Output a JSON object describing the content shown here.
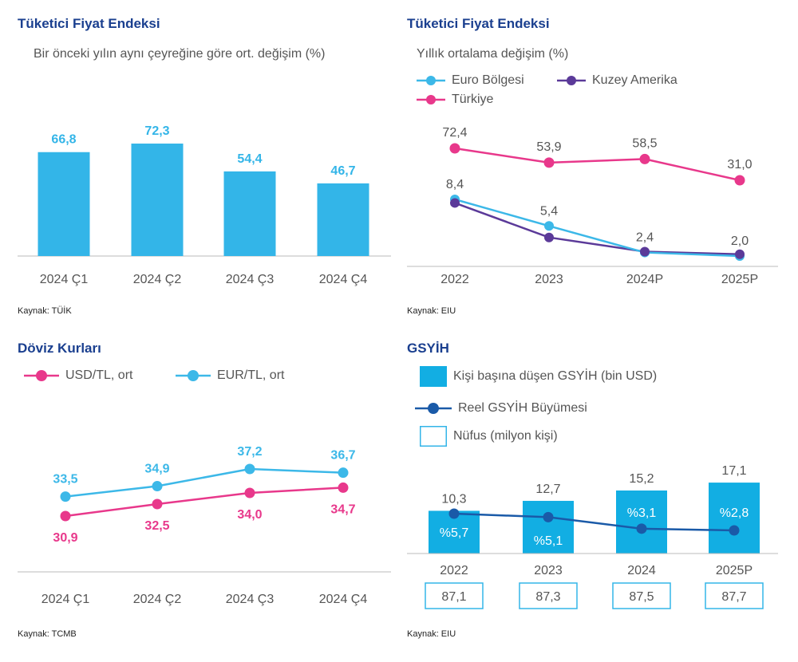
{
  "colors": {
    "title": "#1a3f8f",
    "bar": "#33b5e8",
    "gdp_bar": "#12aee3",
    "euro": "#3cb8e8",
    "north_america": "#5b3a99",
    "turkey": "#e8388b",
    "usd": "#e8388b",
    "eur": "#3cb8e8",
    "growth": "#1a5aa8",
    "population_box": "#33b5e8",
    "axis": "#bbbbbb",
    "tick": "#555555",
    "label_dark": "#555555",
    "label_gdp_bar": "#ffffff"
  },
  "panels": {
    "cpi_quarterly": {
      "title": "Tüketici Fiyat Endeksi",
      "subtitle": "Bir önceki yılın aynı çeyreğine göre ort. değişim (%)",
      "source": "Kaynak: TÜİK"
    },
    "cpi_annual": {
      "title": "Tüketici Fiyat Endeksi",
      "subtitle": "Yıllık ortalama değişim (%)",
      "source": "Kaynak: EIU"
    },
    "fx": {
      "title": "Döviz Kurları",
      "source": "Kaynak: TCMB"
    },
    "gdp": {
      "title": "GSYİH",
      "source": "Kaynak: EIU"
    }
  },
  "chart_data": [
    {
      "id": "cpi_quarterly",
      "type": "bar",
      "title": "Tüketici Fiyat Endeksi",
      "subtitle": "Bir önceki yılın aynı çeyreğine göre ort. değişim (%)",
      "categories": [
        "2024 Ç1",
        "2024 Ç2",
        "2024 Ç3",
        "2024 Ç4"
      ],
      "values": [
        66.8,
        72.3,
        54.4,
        46.7
      ],
      "value_labels": [
        "66,8",
        "72,3",
        "54,4",
        "46,7"
      ],
      "ylim": [
        0,
        80
      ]
    },
    {
      "id": "cpi_annual",
      "type": "line",
      "title": "Tüketici Fiyat Endeksi",
      "subtitle": "Yıllık ortalama değişim (%)",
      "categories": [
        "2022",
        "2023",
        "2024P",
        "2025P"
      ],
      "series": [
        {
          "name": "Euro Bölgesi",
          "values": [
            8.4,
            5.4,
            2.4,
            2.0
          ],
          "labels": [
            "8,4",
            "5,4",
            "2,4",
            "2,0"
          ]
        },
        {
          "name": "Kuzey Amerika",
          "values": [
            8.0,
            4.1,
            2.5,
            2.2
          ]
        },
        {
          "name": "Türkiye",
          "values": [
            72.4,
            53.9,
            58.5,
            31.0
          ],
          "labels": [
            "72,4",
            "53,9",
            "58,5",
            "31,0"
          ]
        }
      ],
      "legend": "top-left"
    },
    {
      "id": "fx",
      "type": "line",
      "title": "Döviz Kurları",
      "categories": [
        "2024 Ç1",
        "2024 Ç2",
        "2024 Ç3",
        "2024 Ç4"
      ],
      "series": [
        {
          "name": "USD/TL, ort",
          "values": [
            30.9,
            32.5,
            34.0,
            34.7
          ],
          "labels": [
            "30,9",
            "32,5",
            "34,0",
            "34,7"
          ]
        },
        {
          "name": "EUR/TL, ort",
          "values": [
            33.5,
            34.9,
            37.2,
            36.7
          ],
          "labels": [
            "33,5",
            "34,9",
            "37,2",
            "36,7"
          ]
        }
      ],
      "legend": "top-left"
    },
    {
      "id": "gdp",
      "type": "bar",
      "title": "GSYİH",
      "categories": [
        "2022",
        "2023",
        "2024",
        "2025P"
      ],
      "series": [
        {
          "name": "Kişi başına düşen GSYİH (bin USD)",
          "values": [
            10.3,
            12.7,
            15.2,
            17.1
          ],
          "labels": [
            "10,3",
            "12,7",
            "15,2",
            "17,1"
          ]
        },
        {
          "name": "Reel GSYİH Büyümesi",
          "values": [
            5.7,
            5.1,
            3.1,
            2.8
          ],
          "labels": [
            "%5,7",
            "%5,1",
            "%3,1",
            "%2,8"
          ]
        },
        {
          "name": "Nüfus (milyon kişi)",
          "values": [
            87.1,
            87.3,
            87.5,
            87.7
          ],
          "labels": [
            "87,1",
            "87,3",
            "87,5",
            "87,7"
          ]
        }
      ],
      "legend": "top-left"
    }
  ]
}
